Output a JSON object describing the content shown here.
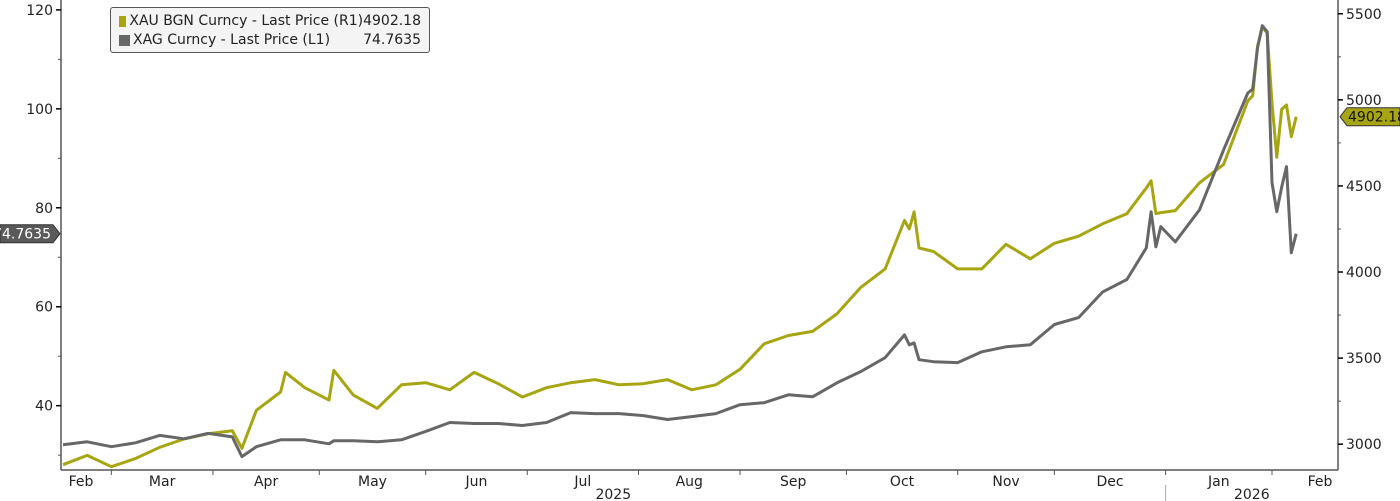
{
  "chart_data": {
    "type": "line",
    "title": "",
    "xlim": [
      "2025-02-17",
      "2026-02-19"
    ],
    "x_tick_labels": [
      "Feb",
      "Mar",
      "Apr",
      "May",
      "Jun",
      "Jul",
      "Aug",
      "Sep",
      "Oct",
      "Nov",
      "Dec",
      "Jan",
      "Feb"
    ],
    "year_labels": [
      "2025",
      "2026"
    ],
    "left_axis": {
      "ylim": [
        27,
        122
      ],
      "ticks": [
        40,
        60,
        80,
        100,
        120
      ],
      "minor_ticks": [
        30,
        50,
        70,
        90,
        110
      ]
    },
    "right_axis": {
      "ylim": [
        2850,
        5580
      ],
      "ticks": [
        3000,
        3500,
        4000,
        4500,
        5000,
        5500
      ],
      "minor_ticks": [
        3250,
        3750,
        4250,
        4750,
        5250
      ]
    },
    "grid": false,
    "legend_placement": "top-left",
    "dates": [
      "2025-02-17",
      "2025-02-24",
      "2025-03-03",
      "2025-03-10",
      "2025-03-17",
      "2025-03-24",
      "2025-03-31",
      "2025-04-07",
      "2025-04-09",
      "2025-04-14",
      "2025-04-21",
      "2025-04-22",
      "2025-04-28",
      "2025-05-05",
      "2025-05-06",
      "2025-05-12",
      "2025-05-19",
      "2025-05-26",
      "2025-06-02",
      "2025-06-09",
      "2025-06-16",
      "2025-06-23",
      "2025-06-30",
      "2025-07-07",
      "2025-07-14",
      "2025-07-21",
      "2025-07-28",
      "2025-08-04",
      "2025-08-11",
      "2025-08-18",
      "2025-08-25",
      "2025-09-01",
      "2025-09-08",
      "2025-09-15",
      "2025-09-22",
      "2025-09-29",
      "2025-10-06",
      "2025-10-13",
      "2025-10-17",
      "2025-10-20",
      "2025-10-21",
      "2025-10-22",
      "2025-10-27",
      "2025-11-03",
      "2025-11-10",
      "2025-11-17",
      "2025-11-24",
      "2025-12-01",
      "2025-12-08",
      "2025-12-15",
      "2025-12-22",
      "2025-12-26",
      "2025-12-29",
      "2025-12-30",
      "2025-12-31",
      "2026-01-05",
      "2026-01-12",
      "2026-01-19",
      "2026-01-26",
      "2026-01-27",
      "2026-01-28",
      "2026-01-29",
      "2026-01-30",
      "2026-02-02",
      "2026-02-03",
      "2026-02-04",
      "2026-02-05",
      "2026-02-06",
      "2026-02-09"
    ],
    "series": [
      {
        "name": "XAU BGN Curncy - Last Price (R1)",
        "axis": "right",
        "color": "#a7a512",
        "last_value": "4902.18",
        "values": [
          2881,
          2935,
          2869,
          2917,
          2982,
          3030,
          3060,
          3078,
          2976,
          3197,
          3303,
          3417,
          3328,
          3256,
          3429,
          3286,
          3208,
          3345,
          3357,
          3316,
          3417,
          3351,
          3274,
          3328,
          3357,
          3375,
          3345,
          3351,
          3375,
          3316,
          3345,
          3435,
          3583,
          3631,
          3655,
          3756,
          3911,
          4018,
          4300,
          4250,
          4350,
          4140,
          4119,
          4018,
          4018,
          4161,
          4077,
          4167,
          4208,
          4280,
          4339,
          4488,
          4530,
          4339,
          4345,
          4357,
          4518,
          4625,
          4994,
          5024,
          5310,
          5423,
          5387,
          4982,
          4667,
          4946,
          4970,
          4786,
          4902.18
        ]
      },
      {
        "name": "XAG Curncy - Last Price (L1)",
        "axis": "left",
        "color": "#676767",
        "last_value": "74.7635",
        "values": [
          32.1,
          32.7,
          31.7,
          32.5,
          34.0,
          33.3,
          34.4,
          33.7,
          29.7,
          31.7,
          33.1,
          33.1,
          33.1,
          32.3,
          32.9,
          32.9,
          32.7,
          33.1,
          34.8,
          36.6,
          36.4,
          36.4,
          36.0,
          36.6,
          38.6,
          38.4,
          38.4,
          38.0,
          37.2,
          37.8,
          38.4,
          40.2,
          40.6,
          42.2,
          41.8,
          44.6,
          46.9,
          49.7,
          54.3,
          52.3,
          52.7,
          49.3,
          48.9,
          48.7,
          50.9,
          51.9,
          52.3,
          56.4,
          57.8,
          63.0,
          65.5,
          71.9,
          79.2,
          72.1,
          76.2,
          73.1,
          79.6,
          91.7,
          103.2,
          104.0,
          112.3,
          116.8,
          115.6,
          85.1,
          79.2,
          84.2,
          88.3,
          70.9,
          74.7635
        ]
      }
    ]
  }
}
